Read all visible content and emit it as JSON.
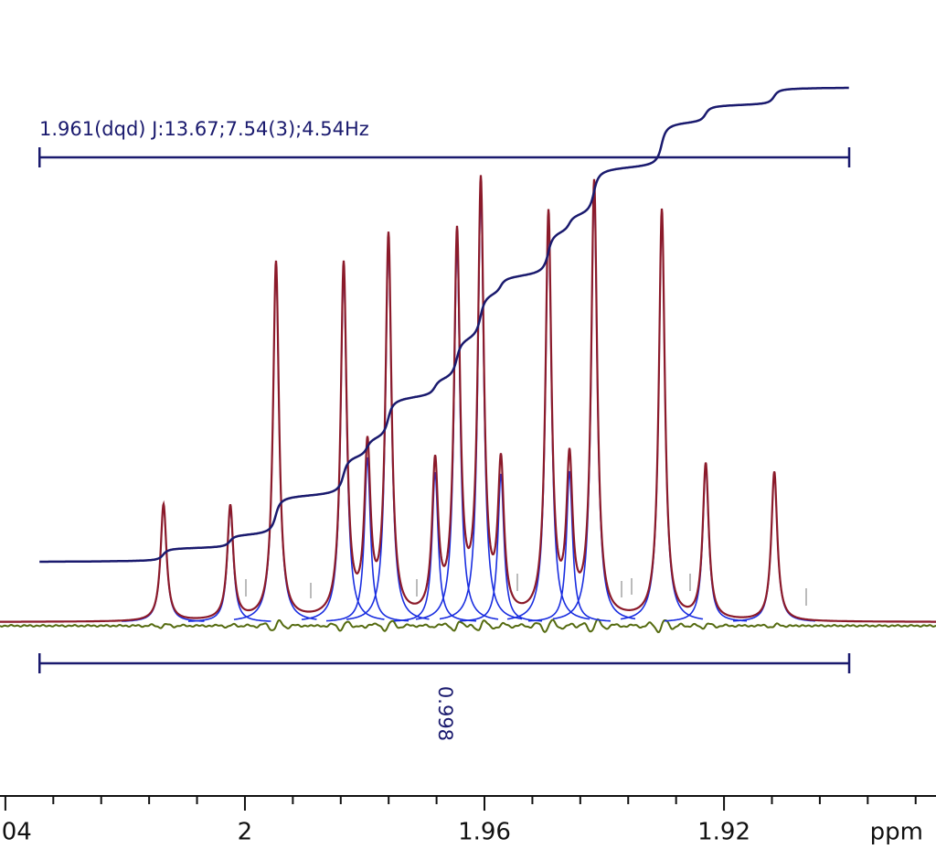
{
  "chart_data": {
    "type": "nmr",
    "multiplet": {
      "label": "1.961(dqd) J:13.67;7.54(3);4.54Hz",
      "range": [
        2.0343,
        1.8991
      ],
      "integral": 0.998
    },
    "x": [
      2.01359,
      2.00244,
      1.99481,
      1.98351,
      1.97954,
      1.97603,
      1.96824,
      1.96458,
      1.96061,
      1.95725,
      1.94931,
      1.9458,
      1.94168,
      1.93038,
      1.92305,
      1.9116
    ],
    "values": [
      21.3,
      20.8,
      65.3,
      64.3,
      30,
      69.2,
      27.3,
      69,
      78.3,
      27,
      73.3,
      27.5,
      79.2,
      74.7,
      28.3,
      27.2
    ],
    "ylim": [
      0,
      100
    ],
    "xlim": [
      2.0409,
      1.8846
    ],
    "xticks": [
      2.04,
      2,
      1.96,
      1.92
    ],
    "xminorticks": [
      2.032,
      2.024,
      2.016,
      2.008,
      1.992,
      1.984,
      1.976,
      1.968,
      1.952,
      1.944,
      1.936,
      1.928,
      1.912,
      1.904,
      1.896,
      1.888
    ],
    "x_label": "ppm",
    "colors": {
      "spectrum": "#8b1a2a",
      "peaks": "#1a2ee0",
      "integral": "#1a1a6e",
      "residual": "#556b10",
      "multiplet": "#1a1a6e"
    }
  }
}
